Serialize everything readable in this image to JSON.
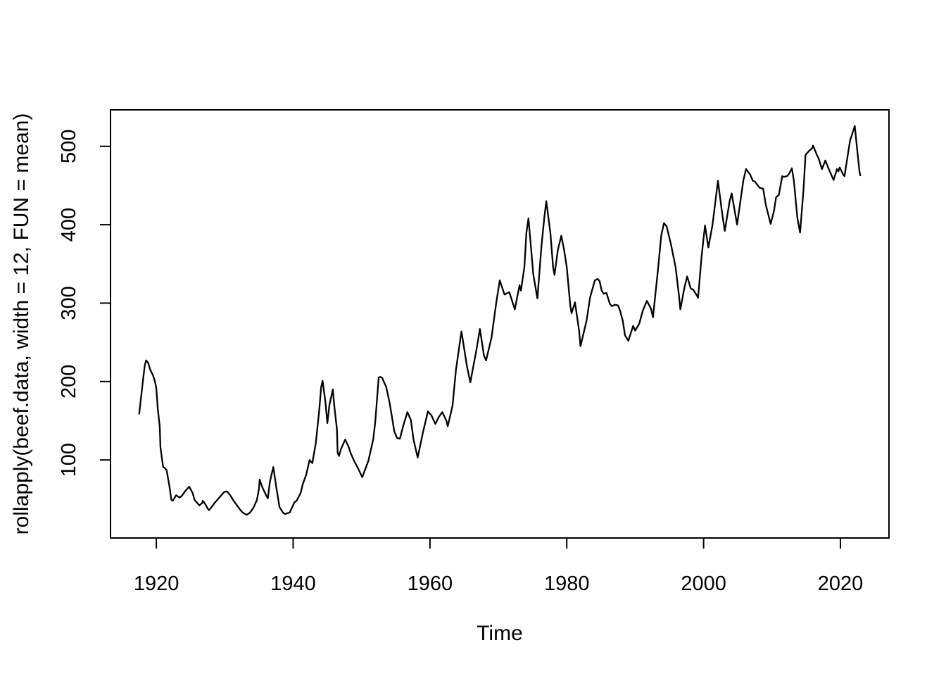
{
  "figure": {
    "background": "#ffffff",
    "foreground": "#000000"
  },
  "chart_data": {
    "type": "line",
    "title": "",
    "xlabel": "Time",
    "ylabel": "rollapply(beef.data, width = 12, FUN = mean)",
    "x_ticks": [
      1920,
      1940,
      1960,
      1980,
      2000,
      2020
    ],
    "y_ticks": [
      100,
      200,
      300,
      400,
      500
    ],
    "xlim": [
      1913.3,
      2027.1
    ],
    "ylim": [
      0.5,
      546.5
    ],
    "grid": false,
    "legend": "none",
    "line_color": "#000000",
    "series": [
      {
        "name": "rollapply(beef.data, width = 12, FUN = mean)",
        "points": [
          [
            1917.5,
            159
          ],
          [
            1917.7,
            175
          ],
          [
            1918.1,
            206
          ],
          [
            1918.3,
            220
          ],
          [
            1918.5,
            227
          ],
          [
            1918.8,
            224
          ],
          [
            1919.1,
            215
          ],
          [
            1919.5,
            208
          ],
          [
            1919.8,
            200
          ],
          [
            1920.0,
            191
          ],
          [
            1920.2,
            166
          ],
          [
            1920.5,
            142
          ],
          [
            1920.6,
            117
          ],
          [
            1920.8,
            103
          ],
          [
            1921.0,
            91
          ],
          [
            1921.2,
            90
          ],
          [
            1921.5,
            87
          ],
          [
            1921.9,
            67
          ],
          [
            1922.2,
            49
          ],
          [
            1922.4,
            48
          ],
          [
            1922.9,
            55
          ],
          [
            1923.4,
            52
          ],
          [
            1923.7,
            54
          ],
          [
            1924.2,
            60
          ],
          [
            1924.8,
            66
          ],
          [
            1925.3,
            58
          ],
          [
            1925.6,
            49
          ],
          [
            1926.3,
            42
          ],
          [
            1926.7,
            45
          ],
          [
            1926.8,
            48
          ],
          [
            1927.2,
            43
          ],
          [
            1927.5,
            38
          ],
          [
            1927.7,
            36
          ],
          [
            1928.0,
            39
          ],
          [
            1928.5,
            45
          ],
          [
            1929.2,
            52
          ],
          [
            1929.9,
            59
          ],
          [
            1930.3,
            60
          ],
          [
            1930.8,
            55
          ],
          [
            1931.3,
            48
          ],
          [
            1931.8,
            42
          ],
          [
            1932.3,
            36
          ],
          [
            1932.6,
            33
          ],
          [
            1933.2,
            30
          ],
          [
            1933.7,
            33
          ],
          [
            1934.2,
            39
          ],
          [
            1934.7,
            49
          ],
          [
            1935.0,
            63
          ],
          [
            1935.1,
            75
          ],
          [
            1935.5,
            65
          ],
          [
            1936.1,
            54
          ],
          [
            1936.3,
            51
          ],
          [
            1936.6,
            72
          ],
          [
            1937.1,
            91
          ],
          [
            1937.5,
            67
          ],
          [
            1938.0,
            40
          ],
          [
            1938.5,
            33
          ],
          [
            1938.8,
            31
          ],
          [
            1939.5,
            33
          ],
          [
            1940.2,
            46
          ],
          [
            1940.5,
            48
          ],
          [
            1941.1,
            58
          ],
          [
            1941.4,
            69
          ],
          [
            1941.9,
            81
          ],
          [
            1942.4,
            100
          ],
          [
            1942.8,
            96
          ],
          [
            1943.3,
            121
          ],
          [
            1943.8,
            162
          ],
          [
            1944.1,
            193
          ],
          [
            1944.3,
            201
          ],
          [
            1944.7,
            175
          ],
          [
            1945.0,
            147
          ],
          [
            1945.3,
            170
          ],
          [
            1945.8,
            190
          ],
          [
            1946.0,
            170
          ],
          [
            1946.4,
            139
          ],
          [
            1946.5,
            109
          ],
          [
            1946.7,
            105
          ],
          [
            1947.0,
            114
          ],
          [
            1947.6,
            126
          ],
          [
            1948.1,
            117
          ],
          [
            1948.4,
            109
          ],
          [
            1948.9,
            99
          ],
          [
            1949.4,
            91
          ],
          [
            1950.1,
            78
          ],
          [
            1951.0,
            99
          ],
          [
            1951.7,
            126
          ],
          [
            1952.0,
            148
          ],
          [
            1952.5,
            205
          ],
          [
            1952.7,
            206
          ],
          [
            1953.0,
            205
          ],
          [
            1953.6,
            193
          ],
          [
            1954.1,
            173
          ],
          [
            1954.8,
            136
          ],
          [
            1955.2,
            128
          ],
          [
            1955.6,
            127
          ],
          [
            1956.1,
            144
          ],
          [
            1956.7,
            161
          ],
          [
            1957.2,
            151
          ],
          [
            1957.6,
            126
          ],
          [
            1958.2,
            103
          ],
          [
            1959.0,
            136
          ],
          [
            1959.7,
            162
          ],
          [
            1960.2,
            157
          ],
          [
            1960.8,
            146
          ],
          [
            1961.3,
            155
          ],
          [
            1961.8,
            161
          ],
          [
            1962.4,
            150
          ],
          [
            1962.6,
            143
          ],
          [
            1963.3,
            169
          ],
          [
            1963.8,
            215
          ],
          [
            1964.6,
            264
          ],
          [
            1965.4,
            220
          ],
          [
            1965.9,
            199
          ],
          [
            1966.8,
            241
          ],
          [
            1967.3,
            267
          ],
          [
            1967.9,
            233
          ],
          [
            1968.2,
            227
          ],
          [
            1969.0,
            256
          ],
          [
            1969.7,
            301
          ],
          [
            1970.2,
            329
          ],
          [
            1970.9,
            311
          ],
          [
            1971.6,
            314
          ],
          [
            1972.4,
            292
          ],
          [
            1973.1,
            323
          ],
          [
            1973.3,
            316
          ],
          [
            1973.8,
            346
          ],
          [
            1974.1,
            390
          ],
          [
            1974.4,
            408
          ],
          [
            1974.8,
            368
          ],
          [
            1975.1,
            337
          ],
          [
            1975.7,
            306
          ],
          [
            1976.3,
            373
          ],
          [
            1976.7,
            408
          ],
          [
            1977.0,
            430
          ],
          [
            1977.6,
            390
          ],
          [
            1978.0,
            346
          ],
          [
            1978.2,
            336
          ],
          [
            1978.7,
            368
          ],
          [
            1979.2,
            386
          ],
          [
            1979.6,
            368
          ],
          [
            1980.0,
            346
          ],
          [
            1980.5,
            298
          ],
          [
            1980.7,
            287
          ],
          [
            1981.2,
            301
          ],
          [
            1981.8,
            265
          ],
          [
            1982.0,
            245
          ],
          [
            1982.9,
            278
          ],
          [
            1983.4,
            307
          ],
          [
            1984.1,
            329
          ],
          [
            1984.5,
            331
          ],
          [
            1984.8,
            328
          ],
          [
            1985.1,
            316
          ],
          [
            1985.4,
            312
          ],
          [
            1985.8,
            313
          ],
          [
            1986.3,
            299
          ],
          [
            1986.6,
            296
          ],
          [
            1987.0,
            298
          ],
          [
            1987.5,
            297
          ],
          [
            1987.8,
            290
          ],
          [
            1988.2,
            277
          ],
          [
            1988.5,
            259
          ],
          [
            1989.0,
            252
          ],
          [
            1989.7,
            271
          ],
          [
            1990.0,
            265
          ],
          [
            1990.6,
            274
          ],
          [
            1991.1,
            290
          ],
          [
            1991.7,
            303
          ],
          [
            1992.3,
            293
          ],
          [
            1992.6,
            282
          ],
          [
            1993.3,
            340
          ],
          [
            1993.8,
            386
          ],
          [
            1994.2,
            402
          ],
          [
            1994.6,
            398
          ],
          [
            1995.2,
            376
          ],
          [
            1995.9,
            346
          ],
          [
            1996.4,
            310
          ],
          [
            1996.6,
            292
          ],
          [
            1997.2,
            320
          ],
          [
            1997.6,
            334
          ],
          [
            1998.1,
            319
          ],
          [
            1998.5,
            317
          ],
          [
            1999.0,
            310
          ],
          [
            1999.2,
            307
          ],
          [
            1999.7,
            359
          ],
          [
            2000.2,
            399
          ],
          [
            2000.7,
            371
          ],
          [
            2001.3,
            400
          ],
          [
            2002.1,
            456
          ],
          [
            2002.7,
            415
          ],
          [
            2003.1,
            392
          ],
          [
            2003.8,
            430
          ],
          [
            2004.1,
            440
          ],
          [
            2004.9,
            400
          ],
          [
            2005.8,
            456
          ],
          [
            2006.2,
            471
          ],
          [
            2006.8,
            464
          ],
          [
            2007.2,
            456
          ],
          [
            2007.5,
            455
          ],
          [
            2008.2,
            447
          ],
          [
            2008.7,
            446
          ],
          [
            2009.1,
            425
          ],
          [
            2009.8,
            401
          ],
          [
            2010.3,
            418
          ],
          [
            2010.6,
            435
          ],
          [
            2011.0,
            438
          ],
          [
            2011.5,
            462
          ],
          [
            2011.7,
            461
          ],
          [
            2012.2,
            462
          ],
          [
            2012.5,
            465
          ],
          [
            2012.9,
            472
          ],
          [
            2013.2,
            456
          ],
          [
            2013.7,
            409
          ],
          [
            2014.1,
            390
          ],
          [
            2014.6,
            444
          ],
          [
            2014.9,
            489
          ],
          [
            2015.4,
            494
          ],
          [
            2015.9,
            498
          ],
          [
            2016.0,
            501
          ],
          [
            2016.6,
            488
          ],
          [
            2016.8,
            485
          ],
          [
            2017.3,
            471
          ],
          [
            2017.8,
            482
          ],
          [
            2018.3,
            471
          ],
          [
            2019.0,
            457
          ],
          [
            2019.5,
            471
          ],
          [
            2019.7,
            468
          ],
          [
            2019.9,
            473
          ],
          [
            2020.4,
            464
          ],
          [
            2020.6,
            462
          ],
          [
            2021.4,
            507
          ],
          [
            2022.1,
            526
          ],
          [
            2022.4,
            500
          ],
          [
            2022.8,
            467
          ],
          [
            2022.9,
            463
          ]
        ]
      }
    ]
  }
}
